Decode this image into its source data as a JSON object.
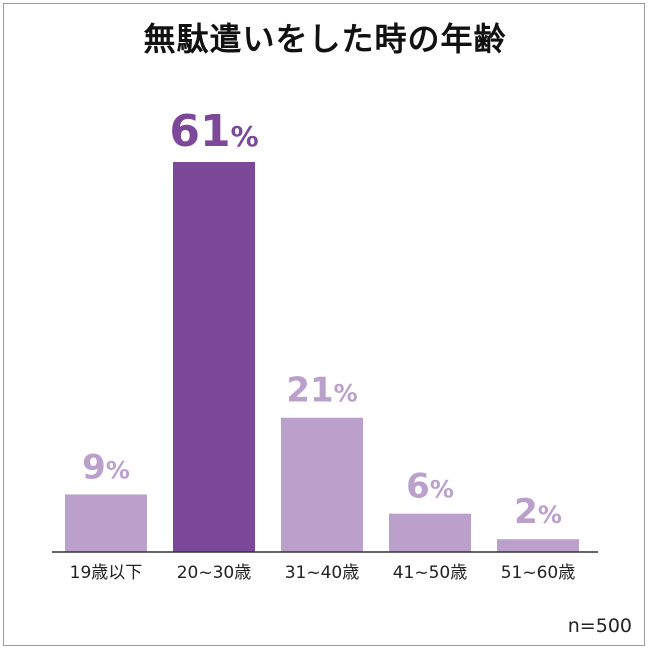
{
  "chart_data": {
    "type": "bar",
    "title": "無駄遣いをした時の年齢",
    "categories": [
      "19歳以下",
      "20~30歳",
      "31~40歳",
      "41~50歳",
      "51~60歳"
    ],
    "values": [
      9,
      61,
      21,
      6,
      2
    ],
    "value_labels": [
      "9",
      "61",
      "21",
      "6",
      "2"
    ],
    "unit": "%",
    "highlight_index": 1,
    "colors": {
      "bar": "#bba0cc",
      "highlight": "#7d4899"
    },
    "ylim": [
      0,
      70
    ],
    "grid": false,
    "legend": "none",
    "note": "n=500"
  }
}
